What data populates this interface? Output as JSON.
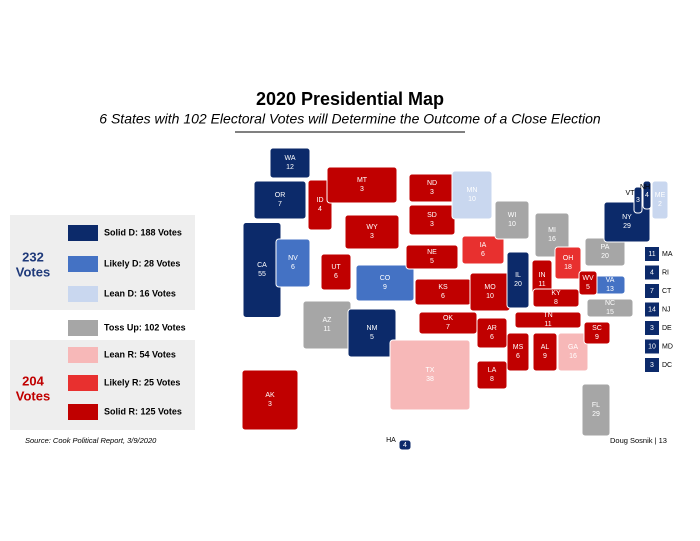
{
  "header": {
    "title": "2020 Presidential Map",
    "subtitle": "6 States with 102 Electoral Votes will Determine the Outcome of a Close Election"
  },
  "legend": {
    "dem_total": {
      "number": "232",
      "unit": "Votes"
    },
    "rep_total": {
      "number": "204",
      "unit": "Votes"
    },
    "items": [
      {
        "label": "Solid D: 188 Votes",
        "color": "#0c2a6a"
      },
      {
        "label": "Likely D: 28 Votes",
        "color": "#4472c4"
      },
      {
        "label": "Lean D: 16 Votes",
        "color": "#c9d7ef"
      },
      {
        "label": "Toss Up: 102 Votes",
        "color": "#a6a6a6"
      },
      {
        "label": "Lean R: 54 Votes",
        "color": "#f7b8b8"
      },
      {
        "label": "Likely R: 25 Votes",
        "color": "#e8302f"
      },
      {
        "label": "Solid R: 125 Votes",
        "color": "#c00000"
      }
    ]
  },
  "states": [
    {
      "abbr": "WA",
      "votes": "12",
      "color": "#0c2a6a"
    },
    {
      "abbr": "OR",
      "votes": "7",
      "color": "#0c2a6a"
    },
    {
      "abbr": "CA",
      "votes": "55",
      "color": "#0c2a6a"
    },
    {
      "abbr": "NV",
      "votes": "6",
      "color": "#4472c4"
    },
    {
      "abbr": "ID",
      "votes": "4",
      "color": "#c00000"
    },
    {
      "abbr": "MT",
      "votes": "3",
      "color": "#c00000"
    },
    {
      "abbr": "WY",
      "votes": "3",
      "color": "#c00000"
    },
    {
      "abbr": "UT",
      "votes": "6",
      "color": "#c00000"
    },
    {
      "abbr": "AZ",
      "votes": "11",
      "color": "#a6a6a6"
    },
    {
      "abbr": "CO",
      "votes": "9",
      "color": "#4472c4"
    },
    {
      "abbr": "NM",
      "votes": "5",
      "color": "#0c2a6a"
    },
    {
      "abbr": "ND",
      "votes": "3",
      "color": "#c00000"
    },
    {
      "abbr": "SD",
      "votes": "3",
      "color": "#c00000"
    },
    {
      "abbr": "NE",
      "votes": "5",
      "color": "#c00000"
    },
    {
      "abbr": "KS",
      "votes": "6",
      "color": "#c00000"
    },
    {
      "abbr": "OK",
      "votes": "7",
      "color": "#c00000"
    },
    {
      "abbr": "TX",
      "votes": "38",
      "color": "#f7b8b8"
    },
    {
      "abbr": "MN",
      "votes": "10",
      "color": "#c9d7ef"
    },
    {
      "abbr": "IA",
      "votes": "6",
      "color": "#e8302f"
    },
    {
      "abbr": "MO",
      "votes": "10",
      "color": "#c00000"
    },
    {
      "abbr": "AR",
      "votes": "6",
      "color": "#c00000"
    },
    {
      "abbr": "LA",
      "votes": "8",
      "color": "#c00000"
    },
    {
      "abbr": "WI",
      "votes": "10",
      "color": "#a6a6a6"
    },
    {
      "abbr": "IL",
      "votes": "20",
      "color": "#0c2a6a"
    },
    {
      "abbr": "MI",
      "votes": "16",
      "color": "#a6a6a6"
    },
    {
      "abbr": "IN",
      "votes": "11",
      "color": "#c00000"
    },
    {
      "abbr": "OH",
      "votes": "18",
      "color": "#e8302f"
    },
    {
      "abbr": "KY",
      "votes": "8",
      "color": "#c00000"
    },
    {
      "abbr": "TN",
      "votes": "11",
      "color": "#c00000"
    },
    {
      "abbr": "MS",
      "votes": "6",
      "color": "#c00000"
    },
    {
      "abbr": "AL",
      "votes": "9",
      "color": "#c00000"
    },
    {
      "abbr": "GA",
      "votes": "16",
      "color": "#f7b8b8"
    },
    {
      "abbr": "FL",
      "votes": "29",
      "color": "#a6a6a6"
    },
    {
      "abbr": "SC",
      "votes": "9",
      "color": "#c00000"
    },
    {
      "abbr": "NC",
      "votes": "15",
      "color": "#a6a6a6"
    },
    {
      "abbr": "VA",
      "votes": "13",
      "color": "#4472c4"
    },
    {
      "abbr": "WV",
      "votes": "5",
      "color": "#c00000"
    },
    {
      "abbr": "PA",
      "votes": "20",
      "color": "#a6a6a6"
    },
    {
      "abbr": "NY",
      "votes": "29",
      "color": "#0c2a6a"
    },
    {
      "abbr": "VT",
      "votes": "3",
      "color": "#0c2a6a"
    },
    {
      "abbr": "NH",
      "votes": "4",
      "color": "#0c2a6a"
    },
    {
      "abbr": "ME",
      "votes": "2",
      "color": "#c9d7ef"
    },
    {
      "abbr": "AK",
      "votes": "3",
      "color": "#c00000"
    },
    {
      "abbr": "HA",
      "votes": "4",
      "color": "#0c2a6a"
    }
  ],
  "small_states": [
    {
      "votes": "11",
      "abbr": "MA"
    },
    {
      "votes": "4",
      "abbr": "RI"
    },
    {
      "votes": "7",
      "abbr": "CT"
    },
    {
      "votes": "14",
      "abbr": "NJ"
    },
    {
      "votes": "3",
      "abbr": "DE"
    },
    {
      "votes": "10",
      "abbr": "MD"
    },
    {
      "votes": "3",
      "abbr": "DC"
    }
  ],
  "footer": {
    "source": "Source: Cook Political Report, 3/9/2020",
    "credit": "Doug Sosnik | 13"
  }
}
